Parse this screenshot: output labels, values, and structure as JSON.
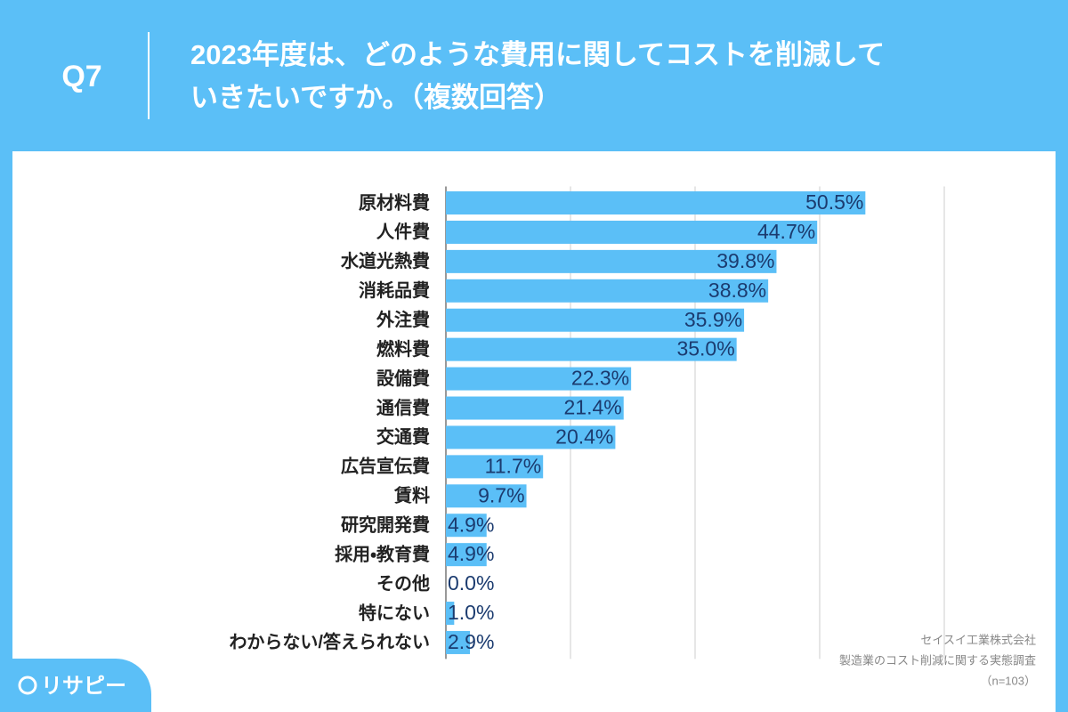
{
  "header": {
    "question": "Q7",
    "title_lines": [
      "2023年度は、どのような費用に関してコストを削減して",
      "いきたいですか。（複数回答）"
    ]
  },
  "chart_data": {
    "type": "hbar",
    "categories": [
      "原材料費",
      "人件費",
      "水道光熱費",
      "消耗品費",
      "外注費",
      "燃料費",
      "設備費",
      "通信費",
      "交通費",
      "広告宣伝費",
      "賃料",
      "研究開発費",
      "採用・教育費",
      "その他",
      "特にない",
      "わからない/答えられない"
    ],
    "values": [
      50.5,
      44.7,
      39.8,
      38.8,
      35.9,
      35.0,
      22.3,
      21.4,
      20.4,
      11.7,
      9.7,
      4.9,
      4.9,
      0.0,
      1.0,
      2.9
    ],
    "value_labels": [
      "50.5%",
      "44.7%",
      "39.8%",
      "38.8%",
      "35.9%",
      "35.0%",
      "22.3%",
      "21.4%",
      "20.4%",
      "11.7%",
      "9.7%",
      "4.9%",
      "4.9%",
      "0.0%",
      "1.0%",
      "2.9%"
    ],
    "color": "#5bbff7",
    "xlim": [
      0,
      60
    ],
    "xticks": [
      0,
      15,
      30,
      45,
      60
    ],
    "grid": true
  },
  "footer": {
    "source_lines": [
      "セイスイ工業株式会社",
      "製造業のコスト削減に関する実態調査",
      "（n=103）"
    ],
    "logo": "リサピー"
  }
}
